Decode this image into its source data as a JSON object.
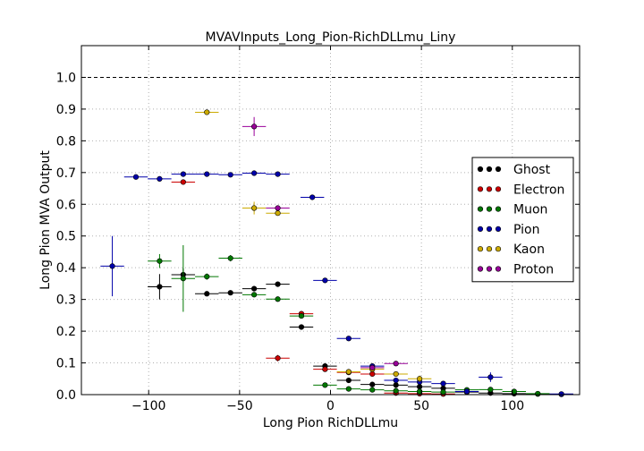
{
  "chart_data": {
    "type": "scatter",
    "title": "MVAVInputs_Long_Pion-RichDLLmu_Liny",
    "xlabel": "Long Pion RichDLLmu",
    "ylabel": "Long Pion MVA Output",
    "xlim": [
      -137,
      137
    ],
    "ylim": [
      0,
      1.1
    ],
    "xticks": [
      -100,
      -50,
      0,
      50,
      100
    ],
    "xtick_labels": [
      "−100",
      "−50",
      "0",
      "50",
      "100"
    ],
    "yticks": [
      0.0,
      0.1,
      0.2,
      0.3,
      0.4,
      0.5,
      0.6,
      0.7,
      0.8,
      0.9,
      1.0
    ],
    "ytick_labels": [
      "0.0",
      "0.1",
      "0.2",
      "0.3",
      "0.4",
      "0.5",
      "0.6",
      "0.7",
      "0.8",
      "0.9",
      "1.0"
    ],
    "grid": true,
    "reference_line": 1.0,
    "legend_position": "right",
    "series": [
      {
        "name": "Ghost",
        "color": "#000000",
        "points": [
          {
            "x": -94,
            "y": 0.34,
            "xerr": 6.5,
            "yerr": 0.04
          },
          {
            "x": -81,
            "y": 0.378,
            "xerr": 6.5,
            "yerr": 0.02
          },
          {
            "x": -68,
            "y": 0.318,
            "xerr": 6.5,
            "yerr": 0.006
          },
          {
            "x": -55,
            "y": 0.321,
            "xerr": 6.5,
            "yerr": 0.006
          },
          {
            "x": -42,
            "y": 0.334,
            "xerr": 6.5,
            "yerr": 0.006
          },
          {
            "x": -29,
            "y": 0.348,
            "xerr": 6.5,
            "yerr": 0.006
          },
          {
            "x": -16,
            "y": 0.213,
            "xerr": 6.5,
            "yerr": 0.006
          },
          {
            "x": -3,
            "y": 0.09,
            "xerr": 6.5,
            "yerr": 0.004
          },
          {
            "x": 10,
            "y": 0.045,
            "xerr": 6.5,
            "yerr": 0.003
          },
          {
            "x": 23,
            "y": 0.032,
            "xerr": 6.5,
            "yerr": 0.003
          },
          {
            "x": 36,
            "y": 0.03,
            "xerr": 6.5,
            "yerr": 0.003
          },
          {
            "x": 49,
            "y": 0.025,
            "xerr": 6.5,
            "yerr": 0.003
          },
          {
            "x": 62,
            "y": 0.02,
            "xerr": 6.5,
            "yerr": 0.003
          },
          {
            "x": 75,
            "y": 0.008,
            "xerr": 6.5,
            "yerr": 0.003
          },
          {
            "x": 88,
            "y": 0.005,
            "xerr": 6.5,
            "yerr": 0.003
          },
          {
            "x": 101,
            "y": 0.003,
            "xerr": 6.5,
            "yerr": 0.003
          },
          {
            "x": 114,
            "y": 0.002,
            "xerr": 6.5,
            "yerr": 0.003
          },
          {
            "x": 127,
            "y": 0.001,
            "xerr": 6.5,
            "yerr": 0.003
          }
        ]
      },
      {
        "name": "Electron",
        "color": "#cc0000",
        "points": [
          {
            "x": -81,
            "y": 0.67,
            "xerr": 6.5,
            "yerr": 0.008
          },
          {
            "x": -29,
            "y": 0.115,
            "xerr": 6.5,
            "yerr": 0.01
          },
          {
            "x": -16,
            "y": 0.255,
            "xerr": 6.5,
            "yerr": 0.006
          },
          {
            "x": -3,
            "y": 0.08,
            "xerr": 6.5,
            "yerr": 0.005
          },
          {
            "x": 10,
            "y": 0.07,
            "xerr": 6.5,
            "yerr": 0.005
          },
          {
            "x": 23,
            "y": 0.065,
            "xerr": 6.5,
            "yerr": 0.004
          },
          {
            "x": 36,
            "y": 0.005,
            "xerr": 6.5,
            "yerr": 0.003
          },
          {
            "x": 49,
            "y": 0.003,
            "xerr": 6.5,
            "yerr": 0.003
          },
          {
            "x": 62,
            "y": 0.002,
            "xerr": 6.5,
            "yerr": 0.003
          }
        ]
      },
      {
        "name": "Muon",
        "color": "#007700",
        "points": [
          {
            "x": -94,
            "y": 0.421,
            "xerr": 6.5,
            "yerr": 0.022
          },
          {
            "x": -81,
            "y": 0.366,
            "xerr": 6.5,
            "yerr": 0.105
          },
          {
            "x": -68,
            "y": 0.372,
            "xerr": 6.5,
            "yerr": 0.01
          },
          {
            "x": -55,
            "y": 0.43,
            "xerr": 6.5,
            "yerr": 0.01
          },
          {
            "x": -42,
            "y": 0.315,
            "xerr": 6.5,
            "yerr": 0.006
          },
          {
            "x": -29,
            "y": 0.301,
            "xerr": 6.5,
            "yerr": 0.006
          },
          {
            "x": -16,
            "y": 0.248,
            "xerr": 6.5,
            "yerr": 0.006
          },
          {
            "x": -3,
            "y": 0.03,
            "xerr": 6.5,
            "yerr": 0.003
          },
          {
            "x": 10,
            "y": 0.018,
            "xerr": 6.5,
            "yerr": 0.003
          },
          {
            "x": 23,
            "y": 0.015,
            "xerr": 6.5,
            "yerr": 0.003
          },
          {
            "x": 36,
            "y": 0.012,
            "xerr": 6.5,
            "yerr": 0.003
          },
          {
            "x": 49,
            "y": 0.01,
            "xerr": 6.5,
            "yerr": 0.003
          },
          {
            "x": 62,
            "y": 0.008,
            "xerr": 6.5,
            "yerr": 0.003
          },
          {
            "x": 75,
            "y": 0.015,
            "xerr": 6.5,
            "yerr": 0.003
          },
          {
            "x": 88,
            "y": 0.016,
            "xerr": 6.5,
            "yerr": 0.003
          },
          {
            "x": 101,
            "y": 0.01,
            "xerr": 6.5,
            "yerr": 0.003
          },
          {
            "x": 114,
            "y": 0.003,
            "xerr": 6.5,
            "yerr": 0.003
          }
        ]
      },
      {
        "name": "Pion",
        "color": "#0000aa",
        "points": [
          {
            "x": -120,
            "y": 0.405,
            "xerr": 6.5,
            "yerr": 0.095
          },
          {
            "x": -107,
            "y": 0.686,
            "xerr": 6.5,
            "yerr": 0.004
          },
          {
            "x": -94,
            "y": 0.68,
            "xerr": 6.5,
            "yerr": 0.004
          },
          {
            "x": -81,
            "y": 0.695,
            "xerr": 6.5,
            "yerr": 0.004
          },
          {
            "x": -68,
            "y": 0.695,
            "xerr": 6.5,
            "yerr": 0.004
          },
          {
            "x": -55,
            "y": 0.693,
            "xerr": 6.5,
            "yerr": 0.004
          },
          {
            "x": -42,
            "y": 0.698,
            "xerr": 6.5,
            "yerr": 0.004
          },
          {
            "x": -29,
            "y": 0.695,
            "xerr": 6.5,
            "yerr": 0.004
          },
          {
            "x": -10,
            "y": 0.622,
            "xerr": 6.5,
            "yerr": 0.004
          },
          {
            "x": -3,
            "y": 0.36,
            "xerr": 6.5,
            "yerr": 0.004
          },
          {
            "x": 10,
            "y": 0.177,
            "xerr": 6.5,
            "yerr": 0.004
          },
          {
            "x": 23,
            "y": 0.09,
            "xerr": 6.5,
            "yerr": 0.003
          },
          {
            "x": 36,
            "y": 0.045,
            "xerr": 6.5,
            "yerr": 0.003
          },
          {
            "x": 49,
            "y": 0.04,
            "xerr": 6.5,
            "yerr": 0.003
          },
          {
            "x": 62,
            "y": 0.035,
            "xerr": 6.5,
            "yerr": 0.003
          },
          {
            "x": 75,
            "y": 0.01,
            "xerr": 6.5,
            "yerr": 0.003
          },
          {
            "x": 88,
            "y": 0.055,
            "xerr": 6.5,
            "yerr": 0.015
          },
          {
            "x": 127,
            "y": 0.002,
            "xerr": 6.5,
            "yerr": 0.003
          }
        ]
      },
      {
        "name": "Kaon",
        "color": "#ccaa00",
        "points": [
          {
            "x": -68,
            "y": 0.89,
            "xerr": 6.5,
            "yerr": 0.006
          },
          {
            "x": -42,
            "y": 0.588,
            "xerr": 6.5,
            "yerr": 0.02
          },
          {
            "x": -29,
            "y": 0.572,
            "xerr": 6.5,
            "yerr": 0.006
          },
          {
            "x": 10,
            "y": 0.072,
            "xerr": 6.5,
            "yerr": 0.006
          },
          {
            "x": 23,
            "y": 0.08,
            "xerr": 6.5,
            "yerr": 0.006
          },
          {
            "x": 36,
            "y": 0.065,
            "xerr": 6.5,
            "yerr": 0.006
          },
          {
            "x": 49,
            "y": 0.05,
            "xerr": 6.5,
            "yerr": 0.01
          }
        ]
      },
      {
        "name": "Proton",
        "color": "#990099",
        "points": [
          {
            "x": -42,
            "y": 0.845,
            "xerr": 6.5,
            "yerr": 0.03
          },
          {
            "x": -29,
            "y": 0.588,
            "xerr": 6.5,
            "yerr": 0.006
          },
          {
            "x": 23,
            "y": 0.085,
            "xerr": 6.5,
            "yerr": 0.006
          },
          {
            "x": 36,
            "y": 0.098,
            "xerr": 6.5,
            "yerr": 0.006
          }
        ]
      }
    ]
  }
}
